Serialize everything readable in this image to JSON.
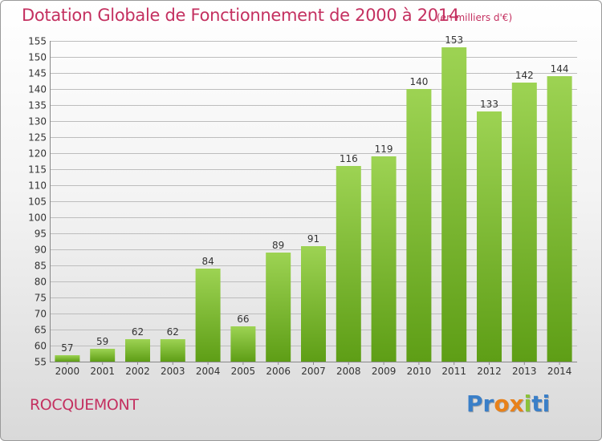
{
  "title": "Dotation Globale de Fonctionnement de 2000 à 2014",
  "unit_note": "(en milliers d'€)",
  "commune": "ROCQUEMONT",
  "logo": {
    "letters": [
      "P",
      "r",
      "o",
      "x",
      "i",
      "t",
      "i"
    ],
    "colors": [
      "#3a7fc8",
      "#3a7fc8",
      "#e8811a",
      "#e8811a",
      "#8bc23a",
      "#3a7fc8",
      "#3a7fc8"
    ]
  },
  "colors": {
    "title": "#c43060",
    "bar_top": "#9dd353",
    "bar_bottom": "#5e9e16",
    "grid": "#bdbdbd",
    "text": "#333333"
  },
  "chart_data": {
    "type": "bar",
    "categories": [
      "2000",
      "2001",
      "2002",
      "2003",
      "2004",
      "2005",
      "2006",
      "2007",
      "2008",
      "2009",
      "2010",
      "2011",
      "2012",
      "2013",
      "2014"
    ],
    "values": [
      57,
      59,
      62,
      62,
      84,
      66,
      89,
      91,
      116,
      119,
      140,
      153,
      133,
      142,
      144
    ],
    "ylim": [
      55,
      155
    ],
    "ytick_step": 5,
    "yticks": [
      "55",
      "60",
      "65",
      "70",
      "75",
      "80",
      "85",
      "90",
      "95",
      "100",
      "105",
      "110",
      "115",
      "120",
      "125",
      "130",
      "135",
      "140",
      "145",
      "150",
      "155"
    ],
    "grid": true
  }
}
